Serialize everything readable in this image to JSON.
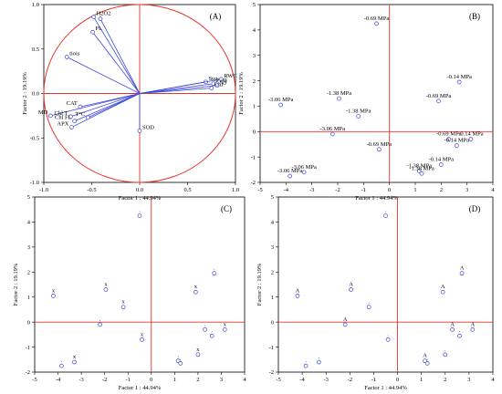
{
  "chart_data": [
    {
      "type": "scatter",
      "panel": "(A)",
      "xlabel": "Factor 1 : 44.94%",
      "ylabel": "Factor 2 : 19.19%",
      "xlim": [
        -1.0,
        1.0
      ],
      "ylim": [
        -1.0,
        1.0
      ],
      "xticks": [
        "-1.0",
        "-0.5",
        "0.0",
        "0.5",
        "1.0"
      ],
      "yticks": [
        "-1.0",
        "-0.5",
        "0.0",
        "0.5",
        "1.0"
      ],
      "circle_radius": 1.0,
      "vectors": [
        {
          "label": "H2O2",
          "x": -0.48,
          "y": 0.86
        },
        {
          "label": "",
          "x": -0.41,
          "y": 0.84
        },
        {
          "label": "PL",
          "x": -0.49,
          "y": 0.69
        },
        {
          "label": "tiois",
          "x": -0.76,
          "y": 0.41
        },
        {
          "label": "CAT",
          "x": -0.62,
          "y": -0.15
        },
        {
          "label": "MD",
          "x": -0.93,
          "y": -0.25
        },
        {
          "label": "Chl T",
          "x": -0.72,
          "y": -0.26
        },
        {
          "label": "Chl FL",
          "x": -0.68,
          "y": -0.31
        },
        {
          "label": "APX",
          "x": -0.71,
          "y": -0.38
        },
        {
          "label": "T°C",
          "x": -0.54,
          "y": -0.27
        },
        {
          "label": "SOD",
          "x": 0.0,
          "y": -0.42
        },
        {
          "label": "Sug",
          "x": 0.69,
          "y": 0.13
        },
        {
          "label": "PSII",
          "x": 0.77,
          "y": 0.11
        },
        {
          "label": "RWC",
          "x": 0.85,
          "y": 0.16
        },
        {
          "label": "Qy",
          "x": 0.81,
          "y": 0.09
        },
        {
          "label": "Chl",
          "x": 0.75,
          "y": 0.06
        }
      ]
    },
    {
      "type": "scatter",
      "panel": "(B)",
      "xlabel": "Factor 1 : 44.94%",
      "ylabel": "Factor 2 : 19.19%",
      "xlim": [
        -5,
        4
      ],
      "ylim": [
        -2,
        5
      ],
      "xticks": [
        "-5",
        "-4",
        "-3",
        "-2",
        "-1",
        "0",
        "1",
        "2",
        "3",
        "4"
      ],
      "yticks": [
        "-2",
        "-1",
        "0",
        "1",
        "2",
        "3",
        "4",
        "5"
      ],
      "points": [
        {
          "x": -4.2,
          "y": 1.05,
          "label": "-3.06 MPa"
        },
        {
          "x": -3.3,
          "y": -1.6,
          "label": "-3.06 MPa"
        },
        {
          "x": -3.85,
          "y": -1.75,
          "label": "-3.06 MPa"
        },
        {
          "x": -2.2,
          "y": -0.1,
          "label": "-3.06 MPa"
        },
        {
          "x": -1.95,
          "y": 1.3,
          "label": "-1.38 MPa"
        },
        {
          "x": -1.2,
          "y": 0.6,
          "label": "-1.38 MPa"
        },
        {
          "x": -0.5,
          "y": 4.25,
          "label": "-0.69 MPa"
        },
        {
          "x": -0.4,
          "y": -0.7,
          "label": "-0.69 MPa"
        },
        {
          "x": 1.15,
          "y": -1.55,
          "label": "-1.38 MPa"
        },
        {
          "x": 1.25,
          "y": -1.65,
          "label": "-1.38 MPa"
        },
        {
          "x": 1.9,
          "y": 1.2,
          "label": "-0.69 MPa"
        },
        {
          "x": 2.0,
          "y": -1.3,
          "label": "-0.14 MPa"
        },
        {
          "x": 2.3,
          "y": -0.3,
          "label": "-0.69 MPa"
        },
        {
          "x": 2.7,
          "y": 1.95,
          "label": "-0.14 MPa"
        },
        {
          "x": 2.6,
          "y": -0.55,
          "label": "-0.14 MPa"
        },
        {
          "x": 3.15,
          "y": -0.3,
          "label": "-0.14 MPa"
        }
      ]
    },
    {
      "type": "scatter",
      "panel": "(C)",
      "xlabel": "Factor 1 : 44.94%",
      "ylabel": "Factor 2 : 19.19%",
      "xlim": [
        -5,
        4
      ],
      "ylim": [
        -2,
        5
      ],
      "xticks": [
        "-5",
        "-4",
        "-3",
        "-2",
        "-1",
        "0",
        "1",
        "2",
        "3",
        "4"
      ],
      "yticks": [
        "-2",
        "-1",
        "0",
        "1",
        "2",
        "3",
        "4",
        "5"
      ],
      "points": [
        {
          "x": -4.2,
          "y": 1.05,
          "label": "x"
        },
        {
          "x": -3.3,
          "y": -1.6,
          "label": "x"
        },
        {
          "x": -3.85,
          "y": -1.75,
          "label": "."
        },
        {
          "x": -2.2,
          "y": -0.1,
          "label": "."
        },
        {
          "x": -1.95,
          "y": 1.3,
          "label": "x"
        },
        {
          "x": -1.2,
          "y": 0.6,
          "label": "x"
        },
        {
          "x": -0.5,
          "y": 4.25,
          "label": "."
        },
        {
          "x": -0.4,
          "y": -0.7,
          "label": "x"
        },
        {
          "x": 1.15,
          "y": -1.55,
          "label": "."
        },
        {
          "x": 1.25,
          "y": -1.65,
          "label": "."
        },
        {
          "x": 1.9,
          "y": 1.2,
          "label": "x"
        },
        {
          "x": 2.0,
          "y": -1.3,
          "label": "x"
        },
        {
          "x": 2.3,
          "y": -0.3,
          "label": "."
        },
        {
          "x": 2.7,
          "y": 1.95,
          "label": "."
        },
        {
          "x": 2.6,
          "y": -0.55,
          "label": "."
        },
        {
          "x": 3.15,
          "y": -0.3,
          "label": "x"
        }
      ]
    },
    {
      "type": "scatter",
      "panel": "(D)",
      "xlabel": "Factor 1 : 44.94%",
      "ylabel": "Factor 2 : 19.19%",
      "xlim": [
        -5,
        4
      ],
      "ylim": [
        -2,
        5
      ],
      "xticks": [
        "-5",
        "-4",
        "-3",
        "-2",
        "-1",
        "0",
        "1",
        "2",
        "3",
        "4"
      ],
      "yticks": [
        "-2",
        "-1",
        "0",
        "1",
        "2",
        "3",
        "4",
        "5"
      ],
      "points": [
        {
          "x": -4.2,
          "y": 1.05,
          "label": "A"
        },
        {
          "x": -3.3,
          "y": -1.6,
          "label": "."
        },
        {
          "x": -3.85,
          "y": -1.75,
          "label": "."
        },
        {
          "x": -2.2,
          "y": -0.1,
          "label": "A"
        },
        {
          "x": -1.95,
          "y": 1.3,
          "label": "A"
        },
        {
          "x": -1.2,
          "y": 0.6,
          "label": "."
        },
        {
          "x": -0.5,
          "y": 4.25,
          "label": "."
        },
        {
          "x": -0.4,
          "y": -0.7,
          "label": "."
        },
        {
          "x": 1.15,
          "y": -1.55,
          "label": "A"
        },
        {
          "x": 1.25,
          "y": -1.65,
          "label": "."
        },
        {
          "x": 1.9,
          "y": 1.2,
          "label": "A"
        },
        {
          "x": 2.0,
          "y": -1.3,
          "label": "."
        },
        {
          "x": 2.3,
          "y": -0.3,
          "label": "A"
        },
        {
          "x": 2.7,
          "y": 1.95,
          "label": "A"
        },
        {
          "x": 2.6,
          "y": -0.55,
          "label": "."
        },
        {
          "x": 3.15,
          "y": -0.3,
          "label": "A"
        }
      ]
    }
  ]
}
